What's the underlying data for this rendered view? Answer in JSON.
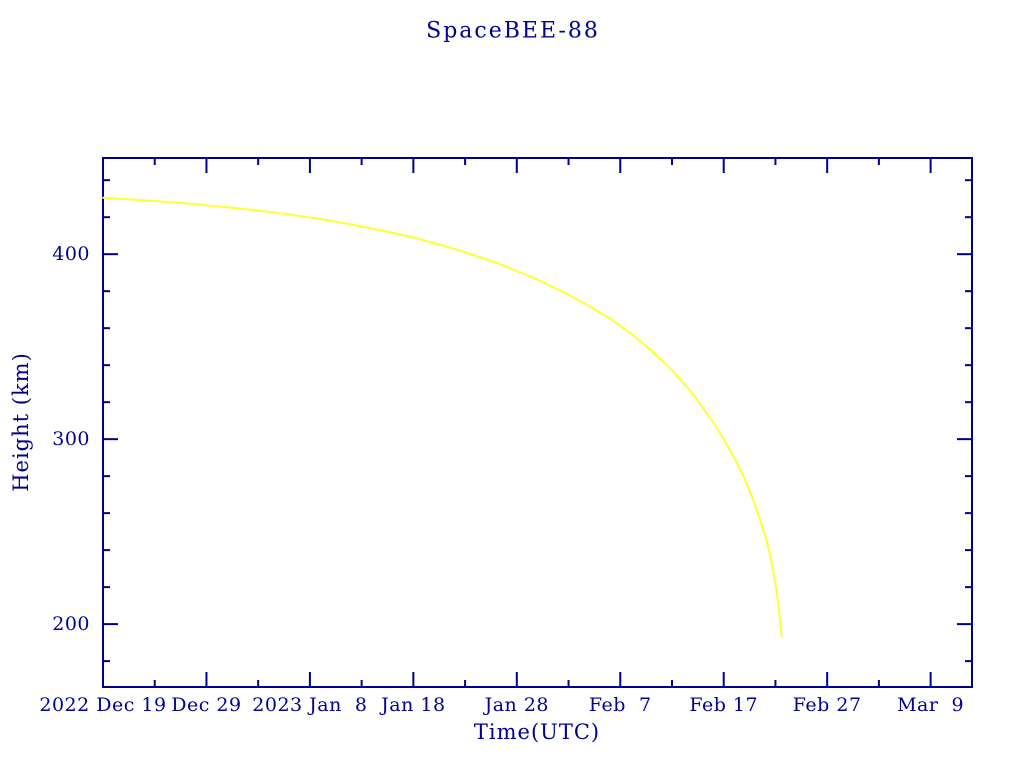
{
  "window": {
    "background": "#ffffff"
  },
  "colors": {
    "axis": "#00008f",
    "text": "#00008f",
    "curve": "#ffff33",
    "background": "#ffffff"
  },
  "chart_data": {
    "type": "line",
    "title": "SpaceBEE-88",
    "xlabel": "Time(UTC)",
    "ylabel": "Height (km)",
    "grid": false,
    "legend": null,
    "x_axis": {
      "unit": "days since 2022 Dec 19 (UTC)",
      "range_days": [
        0,
        84
      ],
      "major_ticks": [
        {
          "days": 0,
          "label": "2022 Dec 19"
        },
        {
          "days": 10,
          "label": "Dec 29"
        },
        {
          "days": 20,
          "label": "2023 Jan  8"
        },
        {
          "days": 30,
          "label": "Jan 18"
        },
        {
          "days": 40,
          "label": "Jan 28"
        },
        {
          "days": 50,
          "label": "Feb  7"
        },
        {
          "days": 60,
          "label": "Feb 17"
        },
        {
          "days": 70,
          "label": "Feb 27"
        },
        {
          "days": 80,
          "label": "Mar  9"
        }
      ],
      "minor_ticks_days": [
        5,
        15,
        25,
        35,
        45,
        55,
        65,
        75
      ]
    },
    "y_axis": {
      "unit": "km",
      "range": [
        166,
        452
      ],
      "major_ticks": [
        200,
        300,
        400
      ],
      "minor_ticks": [
        180,
        220,
        240,
        260,
        280,
        320,
        340,
        360,
        380,
        420,
        440
      ]
    },
    "series": [
      {
        "name": "SpaceBEE-88 height",
        "color": "#ffff33",
        "points_days_km": [
          [
            0,
            430.5
          ],
          [
            3,
            429.5
          ],
          [
            6,
            428.3
          ],
          [
            9,
            427.0
          ],
          [
            12,
            425.4
          ],
          [
            15,
            423.6
          ],
          [
            18,
            421.5
          ],
          [
            21,
            419.0
          ],
          [
            24,
            416.1
          ],
          [
            27,
            412.8
          ],
          [
            30,
            409.0
          ],
          [
            33,
            404.5
          ],
          [
            36,
            399.3
          ],
          [
            39,
            393.3
          ],
          [
            42,
            386.3
          ],
          [
            45,
            378.1
          ],
          [
            47,
            372.0
          ],
          [
            49,
            365.2
          ],
          [
            51,
            357.2
          ],
          [
            53,
            348.0
          ],
          [
            55,
            337.2
          ],
          [
            57,
            324.6
          ],
          [
            59,
            309.0
          ],
          [
            60,
            300.0
          ],
          [
            61,
            290.0
          ],
          [
            62,
            279.0
          ],
          [
            63,
            265.0
          ],
          [
            64,
            248.0
          ],
          [
            64.5,
            237.0
          ],
          [
            65,
            222.0
          ],
          [
            65.3,
            210.0
          ],
          [
            65.5,
            199.0
          ],
          [
            65.6,
            193.0
          ]
        ]
      }
    ]
  }
}
